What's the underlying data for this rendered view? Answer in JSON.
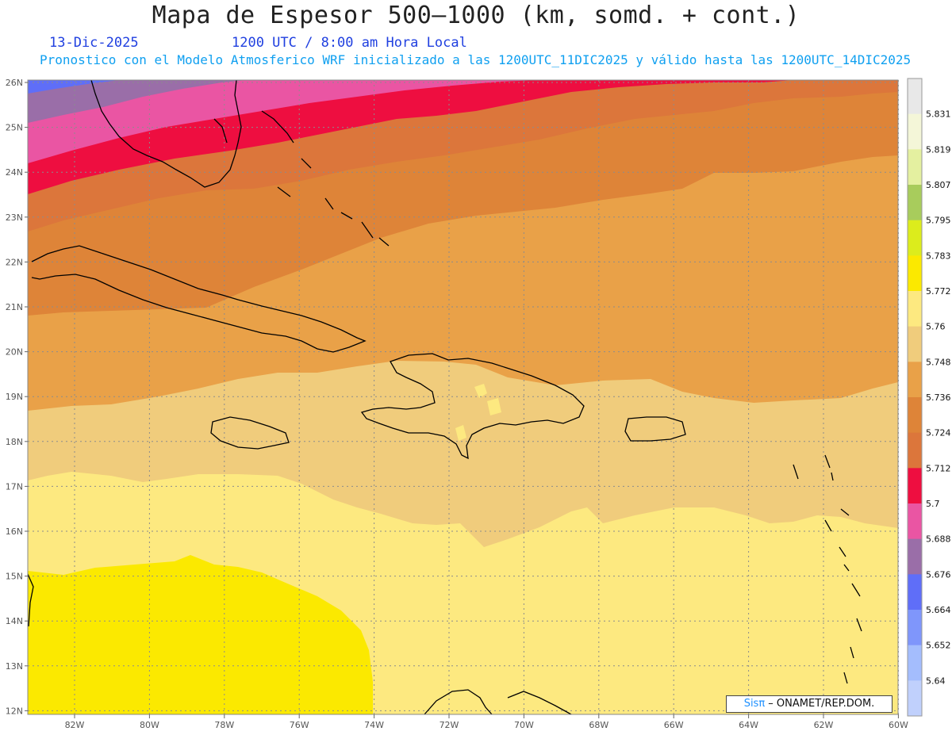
{
  "header": {
    "title": "Mapa de Espesor 500–1000 (km, somd. + cont.)",
    "date": "13-Dic-2025",
    "time": "1200 UTC / 8:00 am Hora Local",
    "subtitle": "Pronostico con el Modelo Atmosferico WRF inicializado a las 1200UTC_11DIC2025 y válido hasta las  1200UTC_14DIC2025"
  },
  "map": {
    "longitude_labels": [
      "82W",
      "80W",
      "78W",
      "76W",
      "74W",
      "72W",
      "70W",
      "68W",
      "66W",
      "64W",
      "62W",
      "60W"
    ],
    "latitude_labels": [
      "26N",
      "25N",
      "24N",
      "23N",
      "22N",
      "21N",
      "20N",
      "19N",
      "18N",
      "17N",
      "16N",
      "15N",
      "14N",
      "13N",
      "12N"
    ]
  },
  "colorbar": {
    "levels": [
      "5.831",
      "5.819",
      "5.807",
      "5.795",
      "5.783",
      "5.772",
      "5.76",
      "5.748",
      "5.736",
      "5.724",
      "5.712",
      "5.7",
      "5.688",
      "5.676",
      "5.664",
      "5.652",
      "5.64"
    ],
    "colors": [
      "#e8e8e8",
      "#f4f6d8",
      "#e4f0a0",
      "#a8cc5c",
      "#dcec1c",
      "#fbe900",
      "#fde980",
      "#f0cc7c",
      "#e9a148",
      "#de8438",
      "#dc763b",
      "#ee0e40",
      "#ea55a3",
      "#9a6ea8",
      "#5f6ef8",
      "#7f96fb",
      "#a4bdfd",
      "#c0d0fc"
    ]
  },
  "credit": {
    "brand": "Sisπ",
    "text": " – ONAMET/REP.DOM."
  }
}
